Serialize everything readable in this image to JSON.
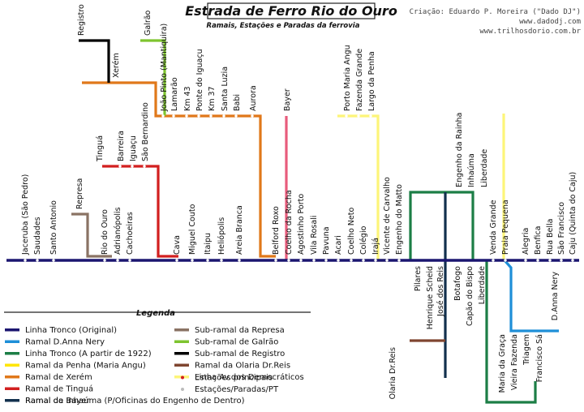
{
  "title": "Estrada de Ferro Rio do Ouro",
  "subtitle": "Ramais, Estações e Paradas da ferrovia",
  "credits": [
    "Criação: Eduardo P. Moreira (\"Dado DJ\")",
    "www.dadodj.com",
    "www.trilhosdorio.com.br"
  ],
  "colors": {
    "tronco": "#1b1670",
    "anna_nery": "#1e8fd8",
    "tronco1922": "#1c7e46",
    "penha": "#ffe600",
    "xerem": "#e0781a",
    "tingua": "#d21f1f",
    "bayer": "#e85c7c",
    "inhauma": "#12304d",
    "represa": "#8a7364",
    "galrao": "#7ec42f",
    "registro": "#000000",
    "olaria": "#7f4530",
    "democraticos": "#fdf579"
  },
  "stations": {
    "main": [
      "Jaceruba (São Pedro)",
      "Saudades",
      "Santo Antonio",
      "Rio do Ouro",
      "Adrianópolis",
      "Cachoeiras",
      "Cava",
      "Miguel Couto",
      "Itaipu",
      "Heliópolis",
      "Areia Branca",
      "Belford Roxo",
      "Coelho da Rocha",
      "Agostinho Porto",
      "Vila Rosali",
      "Pavuna",
      "Acari",
      "Coelho Neto",
      "Colégio",
      "Irajá",
      "Vicente de Carvalho",
      "Engenho do Matto",
      "Venda Grande",
      "Praia Pequena",
      "Alegria",
      "Benfica",
      "Rua Bella",
      "São Francisco",
      "Caju (Quinta do Caju)"
    ],
    "represa": "Represa",
    "tingua": [
      "Tinguá",
      "Barreira",
      "Iguaçu",
      "São Bernardino"
    ],
    "xerem": [
      "João Pinto (Mantiquira)",
      "Lamarão",
      "Km 43",
      "Ponte do Iguaçu",
      "Km 37",
      "Santa Luzia",
      "Babi",
      "Aurora"
    ],
    "registro": [
      "Registro",
      "Xerém"
    ],
    "galrao": "Galrão",
    "bayer": "Bayer",
    "penha": [
      "Porto Maria Angu",
      "Fazenda Grande",
      "Largo da Penha"
    ],
    "inhauma_up": [
      "Engenho da Rainha",
      "Inhaúma",
      "Liberdade"
    ],
    "lower": [
      "Pilares",
      "Henrique Scheid",
      "José dos Reis",
      "Olaria Dr.Reis",
      "Botafogo",
      "Capão do Bispo",
      "Liberdade"
    ],
    "tronco1922": [
      "Maria da Graça",
      "Vieira Fazenda",
      "Triagem",
      "Francisco Sá"
    ],
    "anna_nery": "D.Anna Nery"
  },
  "legend": {
    "title": "Legenda",
    "left": [
      {
        "label": "Linha Tronco (Original)",
        "color": "#1b1670"
      },
      {
        "label": "Ramal D.Anna Nery",
        "color": "#1e8fd8"
      },
      {
        "label": "Linha Tronco (A partir de 1922)",
        "color": "#1c7e46"
      },
      {
        "label": "Ramal da Penha (Maria Angu)",
        "color": "#ffe600"
      },
      {
        "label": "Ramal de Xerém",
        "color": "#e0781a"
      },
      {
        "label": "Ramal de Tinguá",
        "color": "#d21f1f"
      },
      {
        "label": "Ramal da Bayer",
        "color": "#e85c7c"
      }
    ],
    "right": [
      {
        "label": "Sub-ramal da Represa",
        "color": "#8a7364"
      },
      {
        "label": "Sub-ramal de Galrão",
        "color": "#7ec42f"
      },
      {
        "label": "Sub-ramal de Registro",
        "color": "#000000"
      },
      {
        "label": "Ramal da Olaria Dr.Reis",
        "color": "#7f4530"
      },
      {
        "label": "Linha Av.dos Democráticos",
        "color": "#fdf579"
      }
    ],
    "dots": [
      {
        "label": "Estações principais",
        "color": "#d21f1f"
      },
      {
        "label": "Estações/Paradas/PT",
        "color": "#bbbbbb"
      }
    ],
    "wide": {
      "label": "Ramal de Inhaúma (P/Oficinas do Engenho de Dentro)",
      "color": "#12304d"
    }
  }
}
